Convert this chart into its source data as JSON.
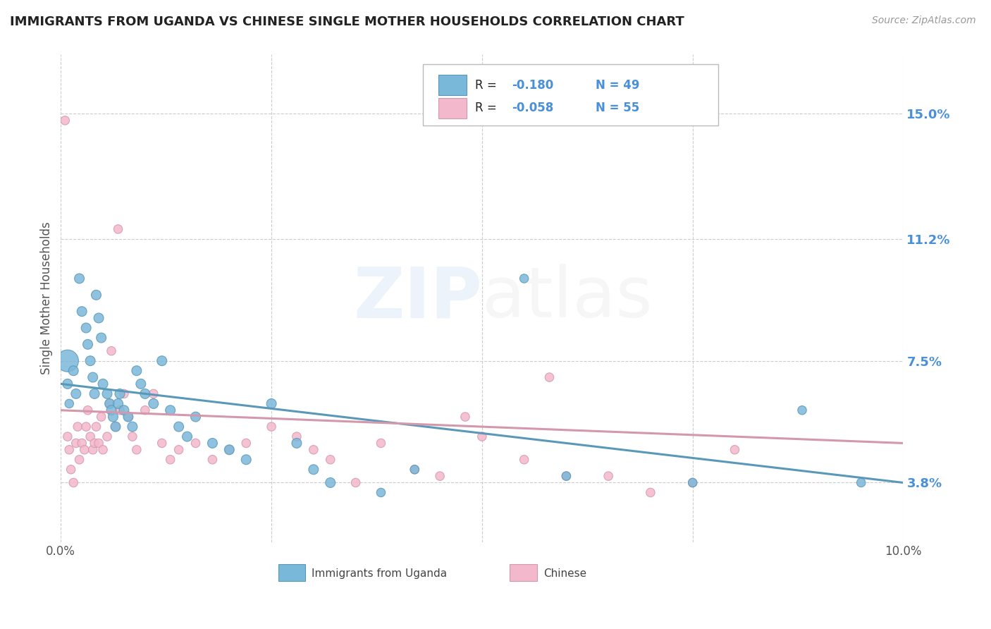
{
  "title": "IMMIGRANTS FROM UGANDA VS CHINESE SINGLE MOTHER HOUSEHOLDS CORRELATION CHART",
  "source": "Source: ZipAtlas.com",
  "ylabel": "Single Mother Households",
  "xlim": [
    0.0,
    0.1
  ],
  "ylim": [
    0.02,
    0.168
  ],
  "yticks": [
    0.038,
    0.075,
    0.112,
    0.15
  ],
  "ytick_labels": [
    "3.8%",
    "7.5%",
    "11.2%",
    "15.0%"
  ],
  "xticks": [
    0.0,
    0.025,
    0.05,
    0.075,
    0.1
  ],
  "xtick_labels": [
    "0.0%",
    "",
    "",
    "",
    "10.0%"
  ],
  "series": [
    {
      "name": "Immigrants from Uganda",
      "color": "#7ab8d9",
      "border_color": "#5a98b9",
      "R": -0.18,
      "N": 49,
      "x": [
        0.0008,
        0.0008,
        0.001,
        0.0015,
        0.0018,
        0.0022,
        0.0025,
        0.003,
        0.0032,
        0.0035,
        0.0038,
        0.004,
        0.0042,
        0.0045,
        0.0048,
        0.005,
        0.0055,
        0.0058,
        0.006,
        0.0062,
        0.0065,
        0.0068,
        0.007,
        0.0075,
        0.008,
        0.0085,
        0.009,
        0.0095,
        0.01,
        0.011,
        0.012,
        0.013,
        0.014,
        0.015,
        0.016,
        0.018,
        0.02,
        0.022,
        0.025,
        0.028,
        0.03,
        0.032,
        0.038,
        0.042,
        0.055,
        0.06,
        0.075,
        0.088,
        0.095
      ],
      "y": [
        0.075,
        0.068,
        0.062,
        0.072,
        0.065,
        0.1,
        0.09,
        0.085,
        0.08,
        0.075,
        0.07,
        0.065,
        0.095,
        0.088,
        0.082,
        0.068,
        0.065,
        0.062,
        0.06,
        0.058,
        0.055,
        0.062,
        0.065,
        0.06,
        0.058,
        0.055,
        0.072,
        0.068,
        0.065,
        0.062,
        0.075,
        0.06,
        0.055,
        0.052,
        0.058,
        0.05,
        0.048,
        0.045,
        0.062,
        0.05,
        0.042,
        0.038,
        0.035,
        0.042,
        0.1,
        0.04,
        0.038,
        0.06,
        0.038
      ],
      "sizes": [
        500,
        100,
        80,
        100,
        100,
        100,
        100,
        100,
        100,
        100,
        100,
        100,
        100,
        100,
        100,
        100,
        100,
        100,
        100,
        100,
        100,
        100,
        100,
        100,
        100,
        100,
        100,
        100,
        100,
        100,
        100,
        100,
        100,
        100,
        100,
        100,
        100,
        100,
        100,
        100,
        100,
        100,
        80,
        80,
        80,
        80,
        80,
        80,
        80
      ]
    },
    {
      "name": "Chinese",
      "color": "#f4b8cc",
      "border_color": "#d498ac",
      "R": -0.058,
      "N": 55,
      "x": [
        0.0005,
        0.0008,
        0.001,
        0.0012,
        0.0015,
        0.0018,
        0.002,
        0.0022,
        0.0025,
        0.0028,
        0.003,
        0.0032,
        0.0035,
        0.0038,
        0.004,
        0.0042,
        0.0045,
        0.0048,
        0.005,
        0.0055,
        0.0058,
        0.006,
        0.0065,
        0.0068,
        0.007,
        0.0075,
        0.008,
        0.0085,
        0.009,
        0.01,
        0.011,
        0.012,
        0.013,
        0.014,
        0.016,
        0.018,
        0.02,
        0.022,
        0.025,
        0.028,
        0.03,
        0.032,
        0.035,
        0.038,
        0.042,
        0.045,
        0.048,
        0.05,
        0.055,
        0.058,
        0.06,
        0.065,
        0.07,
        0.075,
        0.08
      ],
      "y": [
        0.148,
        0.052,
        0.048,
        0.042,
        0.038,
        0.05,
        0.055,
        0.045,
        0.05,
        0.048,
        0.055,
        0.06,
        0.052,
        0.048,
        0.05,
        0.055,
        0.05,
        0.058,
        0.048,
        0.052,
        0.062,
        0.078,
        0.055,
        0.115,
        0.06,
        0.065,
        0.058,
        0.052,
        0.048,
        0.06,
        0.065,
        0.05,
        0.045,
        0.048,
        0.05,
        0.045,
        0.048,
        0.05,
        0.055,
        0.052,
        0.048,
        0.045,
        0.038,
        0.05,
        0.042,
        0.04,
        0.058,
        0.052,
        0.045,
        0.07,
        0.04,
        0.04,
        0.035,
        0.038,
        0.048
      ],
      "sizes": [
        80,
        80,
        80,
        80,
        80,
        80,
        80,
        80,
        80,
        80,
        80,
        80,
        80,
        80,
        80,
        80,
        80,
        80,
        80,
        80,
        80,
        80,
        80,
        80,
        80,
        80,
        80,
        80,
        80,
        80,
        80,
        80,
        80,
        80,
        80,
        80,
        80,
        80,
        80,
        80,
        80,
        80,
        80,
        80,
        80,
        80,
        80,
        80,
        80,
        80,
        80,
        80,
        80,
        80,
        80
      ]
    }
  ],
  "trendline_uganda": {
    "x_start": 0.0,
    "x_end": 0.1,
    "y_start": 0.068,
    "y_end": 0.038
  },
  "trendline_chinese": {
    "x_start": 0.0,
    "x_end": 0.1,
    "y_start": 0.06,
    "y_end": 0.05
  },
  "background_color": "#ffffff",
  "grid_color": "#cccccc",
  "title_color": "#222222",
  "axis_label_color": "#555555",
  "right_tick_color": "#4a90d9"
}
